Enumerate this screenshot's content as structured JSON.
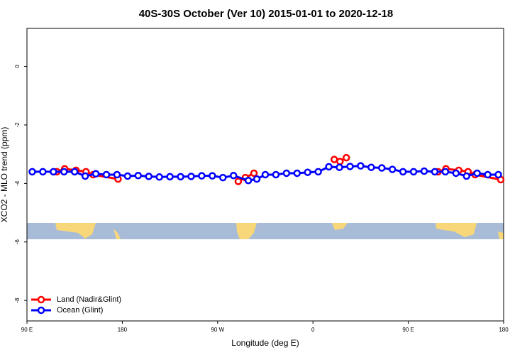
{
  "chart_data": {
    "type": "line",
    "title": "40S-30S October (Ver 10)   2015-01-01 to 2020-12-18",
    "x_label": "Longitude (deg E)",
    "y_label": "XCO2 - MLO trend (ppm)",
    "xlim": [
      90,
      540
    ],
    "ylim": [
      -8.7,
      1.3
    ],
    "xticks": [
      {
        "value": 90,
        "label": "90 E"
      },
      {
        "value": 180,
        "label": "180"
      },
      {
        "value": 270,
        "label": "90 W"
      },
      {
        "value": 360,
        "label": "0"
      },
      {
        "value": 450,
        "label": "90 E"
      },
      {
        "value": 540,
        "label": "180"
      }
    ],
    "yticks": [
      0,
      -2,
      -4,
      -6,
      -8
    ],
    "legend": "bottom-left",
    "series": [
      {
        "name": "Land (Nadir&Glint)",
        "color": "#ff0000",
        "x": [
          118.2,
          125.6,
          136.3,
          145.7,
          152.5,
          176,
          null,
          289.5,
          296.2,
          304.3,
          null,
          380.1,
          385.5,
          391.5,
          null,
          478.1,
          485.5,
          497.6,
          506.4,
          513.1,
          537.3
        ],
        "values": [
          -3.6,
          -3.5,
          -3.55,
          -3.6,
          -3.7,
          -3.85,
          null,
          -3.93,
          -3.8,
          -3.65,
          null,
          -3.18,
          -3.25,
          -3.12,
          null,
          -3.6,
          -3.5,
          -3.55,
          -3.6,
          -3.7,
          -3.87
        ]
      },
      {
        "name": "Ocean (Glint)",
        "color": "#0000ff",
        "x": [
          95,
          105,
          115,
          125,
          135,
          145,
          155,
          165,
          175,
          185,
          195,
          205,
          215,
          225,
          235,
          245,
          255,
          265,
          275,
          285,
          299,
          307,
          315,
          325,
          335,
          345,
          355,
          365,
          375,
          385,
          395,
          405,
          415,
          425,
          435,
          445,
          455,
          465,
          475,
          485,
          495,
          505,
          515,
          525,
          535
        ],
        "values": [
          -3.6,
          -3.6,
          -3.6,
          -3.6,
          -3.6,
          -3.75,
          -3.67,
          -3.7,
          -3.7,
          -3.75,
          -3.73,
          -3.76,
          -3.78,
          -3.77,
          -3.77,
          -3.76,
          -3.74,
          -3.74,
          -3.8,
          -3.73,
          -3.9,
          -3.85,
          -3.7,
          -3.7,
          -3.65,
          -3.65,
          -3.62,
          -3.6,
          -3.43,
          -3.45,
          -3.42,
          -3.4,
          -3.45,
          -3.47,
          -3.52,
          -3.6,
          -3.6,
          -3.58,
          -3.6,
          -3.6,
          -3.65,
          -3.75,
          -3.65,
          -3.7,
          -3.7
        ]
      }
    ]
  }
}
